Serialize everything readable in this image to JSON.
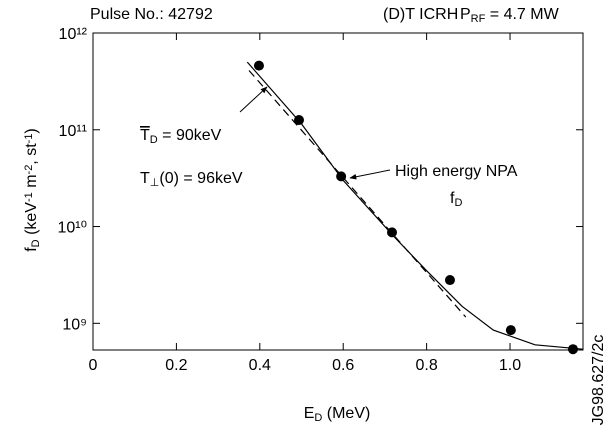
{
  "chart_data": {
    "type": "scatter",
    "header": [
      {
        "parts": [
          {
            "text": "Pulse No.: 42792"
          }
        ]
      },
      {
        "parts": [
          {
            "text": "(D)T ICRH"
          }
        ]
      },
      {
        "parts": [
          {
            "text": "P"
          },
          {
            "text": "RF",
            "sub": true
          },
          {
            "text": " = 4.7 MW"
          }
        ]
      }
    ],
    "x_label": {
      "parts": [
        {
          "text": "E"
        },
        {
          "text": "D",
          "sub": true
        },
        {
          "text": " (MeV)"
        }
      ]
    },
    "y_label": {
      "parts": [
        {
          "text": "f"
        },
        {
          "text": "D",
          "sub": true
        },
        {
          "text": " (keV"
        },
        {
          "text": "-1",
          "sup": true
        },
        {
          "text": " m"
        },
        {
          "text": "-2",
          "sup": true
        },
        {
          "text": ", st"
        },
        {
          "text": "-1",
          "sup": true
        },
        {
          "text": ")"
        }
      ]
    },
    "annotations": [
      {
        "parts": [
          {
            "text": "T",
            "overline": true
          },
          {
            "text": "D",
            "sub": true
          },
          {
            "text": " = 90keV"
          }
        ]
      },
      {
        "parts": [
          {
            "text": "T"
          },
          {
            "text": "⊥",
            "sub": true
          },
          {
            "text": "(0) = 96keV"
          }
        ]
      },
      {
        "parts": [
          {
            "text": "High energy NPA"
          }
        ]
      },
      {
        "parts": [
          {
            "text": "f"
          },
          {
            "text": "D",
            "sub": true
          }
        ]
      },
      {
        "parts": [
          {
            "text": "JG98.627/2c"
          }
        ]
      }
    ],
    "x": [
      0.398,
      0.494,
      0.595,
      0.717,
      0.856,
      1.002,
      1.151
    ],
    "values": [
      460000000000,
      126000000000,
      33000000000,
      8700000000,
      2800000000,
      850000000,
      540000000
    ],
    "color": "#000000",
    "lines": [
      {
        "x": [
          0.37,
          0.5,
          0.6,
          0.72,
          0.8,
          0.885,
          0.96,
          1.06,
          1.175
        ],
        "values": [
          500000000000,
          115000000000,
          30000000000,
          8000000000,
          3500000000,
          1500000000,
          850000000,
          600000000,
          540000000
        ],
        "dash": false
      },
      {
        "x": [
          0.374,
          0.894
        ],
        "values": [
          410000000000,
          1160000000
        ],
        "dash": true
      }
    ],
    "xlim": [
      0,
      1.175
    ],
    "ylim": [
      530000000,
      1000000000000
    ],
    "log_y": true,
    "xticks": [
      0,
      0.2,
      0.4,
      0.6,
      0.8,
      {
        "value": 1,
        "label": "1.0"
      }
    ],
    "yticks": [
      {
        "value": 1000000000,
        "label": "10⁹"
      },
      {
        "value": 10000000000,
        "label": "10¹⁰"
      },
      {
        "value": 100000000000,
        "label": "10¹¹"
      },
      {
        "value": 1000000000000,
        "label": "10¹²"
      }
    ]
  }
}
